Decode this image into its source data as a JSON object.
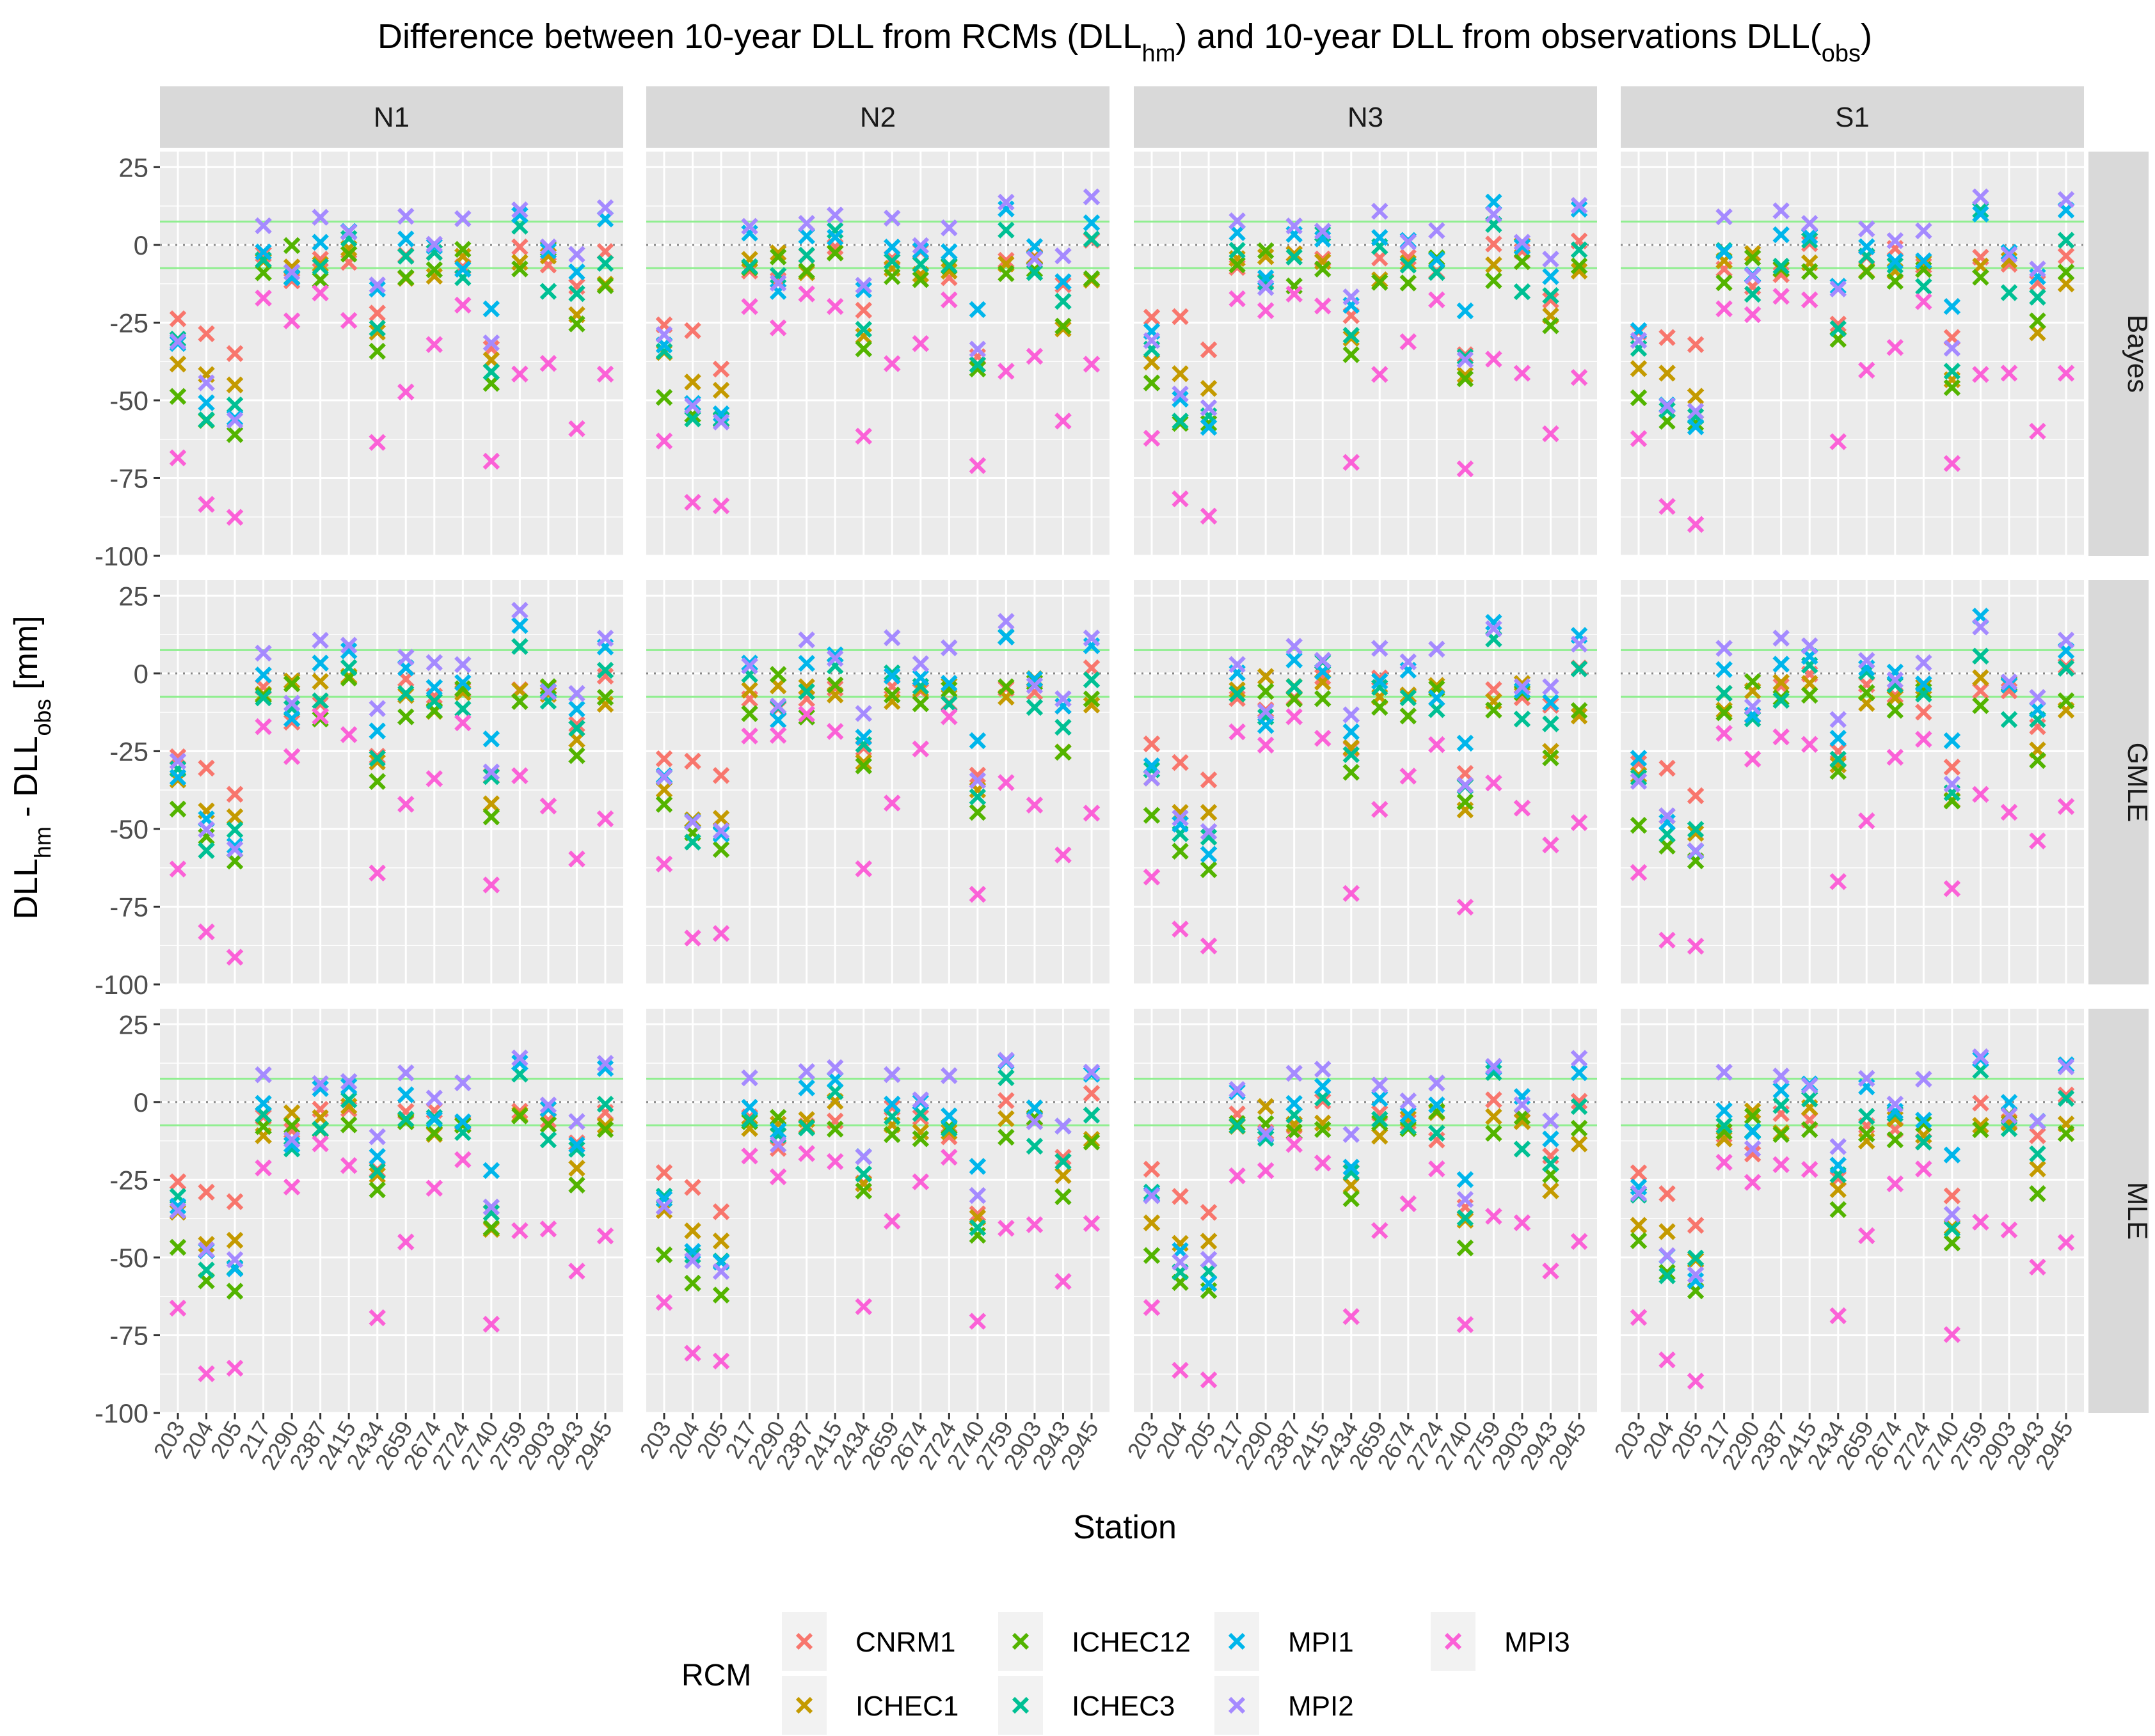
{
  "chart_data": {
    "type": "scatter",
    "title_parts": {
      "a": "Difference between 10-year DLL from RCMs (DLL",
      "a_sub": "hm",
      "b": ") and 10-year DLL from observations DLL(",
      "b_sub": "obs",
      "c": ")"
    },
    "xlabel": "Station",
    "ylabel_parts": {
      "a": "DLL",
      "a_sub": "hm",
      "b": " - DLL",
      "b_sub": "obs",
      "c": " [mm]"
    },
    "ylim": [
      -100,
      30
    ],
    "y_ticks": [
      25,
      0,
      -25,
      -50,
      -75,
      -100
    ],
    "y_tick_labels": [
      "25",
      "0",
      "-25",
      "-50",
      "-75",
      "-100"
    ],
    "reference_lines": {
      "dotted": 0,
      "green_band": [
        -7.5,
        7.5
      ]
    },
    "stations": [
      "203",
      "204",
      "205",
      "217",
      "2290",
      "2387",
      "2415",
      "2434",
      "2659",
      "2674",
      "2724",
      "2740",
      "2759",
      "2903",
      "2943",
      "2945"
    ],
    "columns": [
      "N1",
      "N2",
      "N3",
      "S1"
    ],
    "rows": [
      "Bayes",
      "GMLE",
      "MLE"
    ],
    "legend": {
      "title": "RCM",
      "entries": [
        "CNRM1",
        "ICHEC1",
        "ICHEC12",
        "ICHEC3",
        "MPI1",
        "MPI2",
        "MPI3"
      ]
    },
    "series_colors": {
      "CNRM1": "#F8766D",
      "ICHEC1": "#C49A00",
      "ICHEC12": "#53B400",
      "ICHEC3": "#00C094",
      "MPI1": "#00B6EB",
      "MPI2": "#A58AFF",
      "MPI3": "#FB61D7"
    },
    "series_approx": {
      "CNRM1": [
        -25,
        -27,
        -36,
        -7,
        -13,
        -6,
        -3,
        -25,
        -5,
        -5,
        -9,
        -32,
        -3,
        -4,
        -14,
        0
      ],
      "ICHEC1": [
        -36,
        -44,
        -48,
        -8,
        -4,
        -6,
        -3,
        -27,
        -9,
        -9,
        -7,
        -40,
        -5,
        -3,
        -25,
        -10
      ],
      "ICHEC12": [
        -46,
        -55,
        -60,
        -9,
        -4,
        -11,
        -5,
        -32,
        -10,
        -11,
        -4,
        -43,
        -8,
        -4,
        -27,
        -10
      ],
      "ICHEC3": [
        -31,
        -53,
        -53,
        -4,
        -12,
        -5,
        3,
        -26,
        -3,
        -6,
        -10,
        -37,
        8,
        -12,
        -17,
        -2
      ],
      "MPI1": [
        -30,
        -49,
        -55,
        0,
        -13,
        1,
        4,
        -17,
        1,
        -2,
        -4,
        -21,
        10,
        -2,
        -10,
        10
      ],
      "MPI2": [
        -31,
        -48,
        -54,
        6,
        -12,
        8,
        8,
        -14,
        8,
        1,
        6,
        -33,
        13,
        -3,
        -7,
        12
      ],
      "MPI3": [
        -66,
        -84,
        -89,
        -20,
        -25,
        -17,
        -21,
        -67,
        -44,
        -30,
        -19,
        -72,
        -40,
        -41,
        -57,
        -44
      ]
    },
    "series_label_colors": {
      "strip_bg": "#D9D9D9",
      "panel_bg": "#EBEBEB",
      "band": "#90EE90"
    }
  }
}
